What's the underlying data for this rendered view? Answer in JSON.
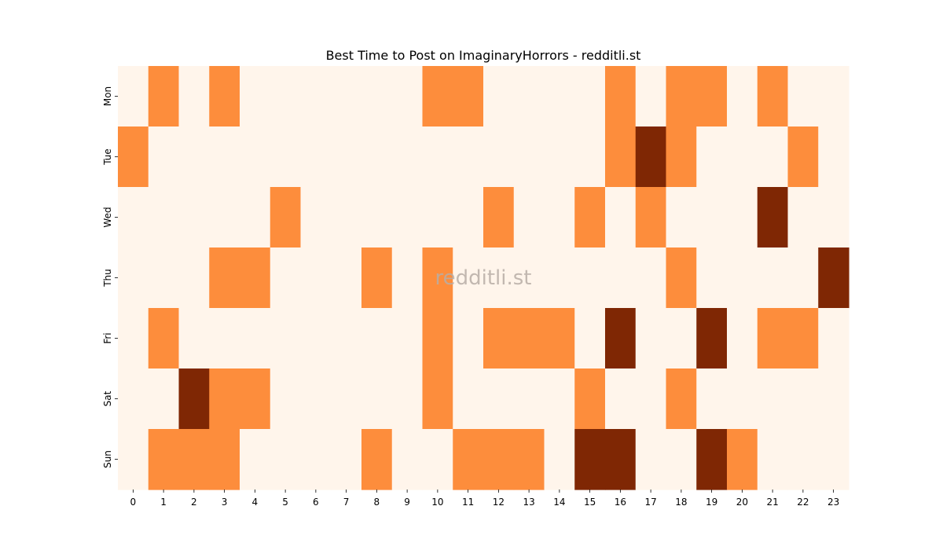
{
  "chart_data": {
    "type": "heatmap",
    "title": "Best Time to Post on ImaginaryHorrors - redditli.st",
    "watermark": "redditli.st",
    "x_categories": [
      "0",
      "1",
      "2",
      "3",
      "4",
      "5",
      "6",
      "7",
      "8",
      "9",
      "10",
      "11",
      "12",
      "13",
      "14",
      "15",
      "16",
      "17",
      "18",
      "19",
      "20",
      "21",
      "22",
      "23"
    ],
    "y_categories": [
      "Mon",
      "Tue",
      "Wed",
      "Thu",
      "Fri",
      "Sat",
      "Sun"
    ],
    "levels": {
      "0": "#fff5eb",
      "1": "#fd8d3c",
      "2": "#7f2704"
    },
    "values": [
      [
        0,
        1,
        0,
        1,
        0,
        0,
        0,
        0,
        0,
        0,
        1,
        1,
        0,
        0,
        0,
        0,
        1,
        0,
        1,
        1,
        0,
        1,
        0,
        0
      ],
      [
        1,
        0,
        0,
        0,
        0,
        0,
        0,
        0,
        0,
        0,
        0,
        0,
        0,
        0,
        0,
        0,
        1,
        2,
        1,
        0,
        0,
        0,
        1,
        0
      ],
      [
        0,
        0,
        0,
        0,
        0,
        1,
        0,
        0,
        0,
        0,
        0,
        0,
        1,
        0,
        0,
        1,
        0,
        1,
        0,
        0,
        0,
        2,
        0,
        0
      ],
      [
        0,
        0,
        0,
        1,
        1,
        0,
        0,
        0,
        1,
        0,
        1,
        0,
        0,
        0,
        0,
        0,
        0,
        0,
        1,
        0,
        0,
        0,
        0,
        2
      ],
      [
        0,
        1,
        0,
        0,
        0,
        0,
        0,
        0,
        0,
        0,
        1,
        0,
        1,
        1,
        1,
        0,
        2,
        0,
        0,
        2,
        0,
        1,
        1,
        0
      ],
      [
        0,
        0,
        2,
        1,
        1,
        0,
        0,
        0,
        0,
        0,
        1,
        0,
        0,
        0,
        0,
        1,
        0,
        0,
        1,
        0,
        0,
        0,
        0,
        0
      ],
      [
        0,
        1,
        1,
        1,
        0,
        0,
        0,
        0,
        1,
        0,
        0,
        1,
        1,
        1,
        0,
        2,
        2,
        0,
        0,
        2,
        1,
        0,
        0,
        0
      ]
    ]
  }
}
